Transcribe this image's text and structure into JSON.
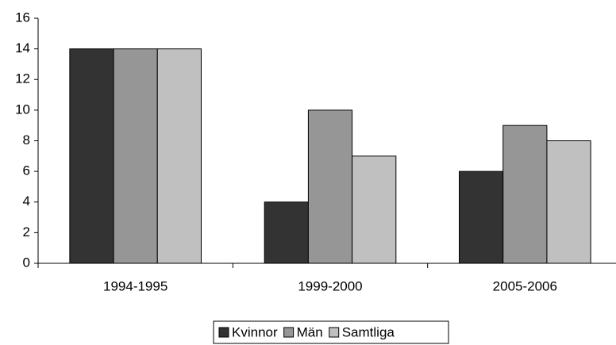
{
  "chart_data": {
    "type": "bar",
    "categories": [
      "1994-1995",
      "1999-2000",
      "2005-2006"
    ],
    "series": [
      {
        "name": "Kvinnor",
        "color": "#333333",
        "values": [
          14,
          4,
          6
        ]
      },
      {
        "name": "Män",
        "color": "#969696",
        "values": [
          14,
          10,
          9
        ]
      },
      {
        "name": "Samtliga",
        "color": "#c0c0c0",
        "values": [
          14,
          7,
          8
        ]
      }
    ],
    "ylim": [
      0,
      16
    ],
    "yticks": [
      0,
      2,
      4,
      6,
      8,
      10,
      12,
      14,
      16
    ],
    "grid": false,
    "legend": "bottom"
  }
}
